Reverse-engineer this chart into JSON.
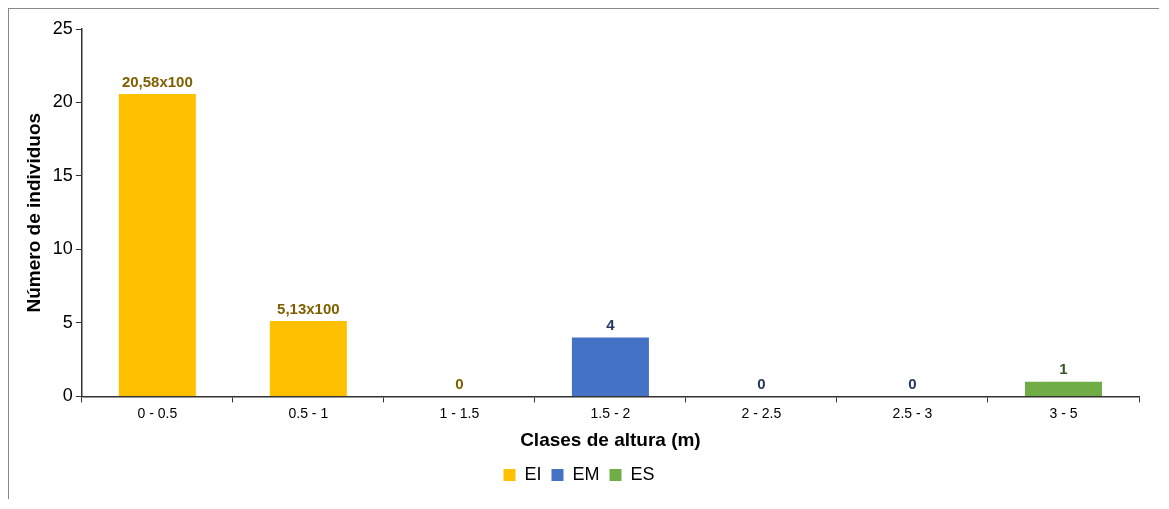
{
  "chart_data": {
    "type": "bar",
    "xlabel": "Clases de altura (m)",
    "ylabel": "Número de individuos",
    "categories": [
      "0 - 0.5",
      "0.5 - 1",
      "1 - 1.5",
      "1.5 - 2",
      "2 - 2.5",
      "2.5 - 3",
      "3 - 5"
    ],
    "series": [
      {
        "name": "EI",
        "color": "#ffc000",
        "values": [
          20.58,
          5.13,
          0,
          null,
          null,
          null,
          null
        ],
        "value_labels": [
          "20,58x100",
          "5,13x100",
          "0",
          null,
          null,
          null,
          null
        ]
      },
      {
        "name": "EM",
        "color": "#4472c4",
        "values": [
          null,
          null,
          null,
          4,
          0,
          0,
          null
        ],
        "value_labels": [
          null,
          null,
          null,
          "4",
          "0",
          "0",
          null
        ]
      },
      {
        "name": "ES",
        "color": "#70ad47",
        "values": [
          null,
          null,
          null,
          null,
          null,
          null,
          1
        ],
        "value_labels": [
          null,
          null,
          null,
          null,
          null,
          null,
          "1"
        ]
      }
    ],
    "ylim": [
      0,
      25
    ],
    "yticks": [
      0,
      5,
      10,
      15,
      20,
      25
    ],
    "grid": false,
    "legend": "bottom"
  }
}
